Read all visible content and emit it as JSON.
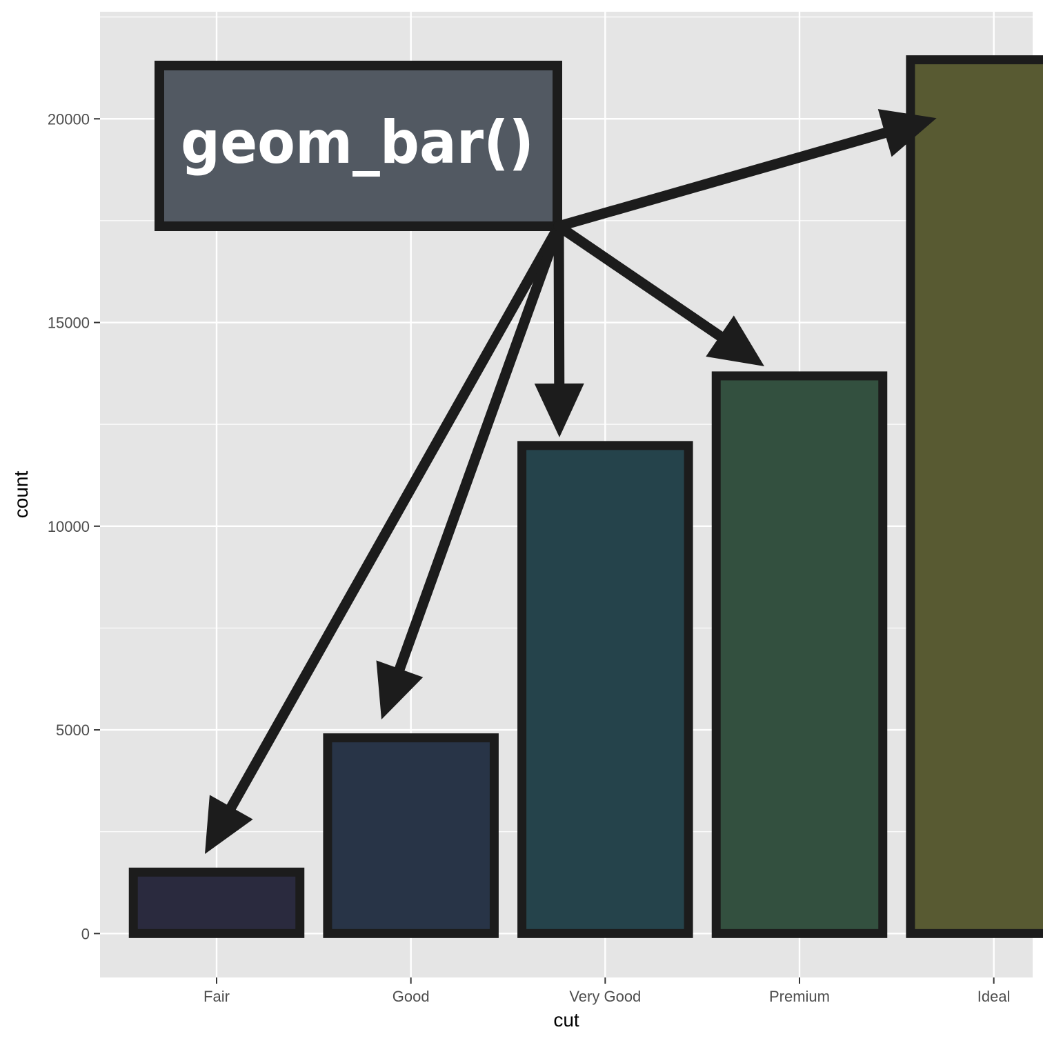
{
  "chart_data": {
    "type": "bar",
    "categories": [
      "Fair",
      "Good",
      "Very Good",
      "Premium",
      "Ideal"
    ],
    "values": [
      1610,
      4906,
      12082,
      13791,
      21551
    ],
    "bar_colors": [
      "#2a2a3e",
      "#283447",
      "#25434b",
      "#33503f",
      "#585a32"
    ],
    "bar_outline_color": "#1c1c1c",
    "xlabel": "cut",
    "ylabel": "count",
    "ylim": [
      -1078,
      22629
    ],
    "y_ticks": [
      0,
      5000,
      10000,
      15000,
      20000
    ],
    "grid": true,
    "annotation": {
      "text": "geom_bar()",
      "fill": "#525962",
      "arrows_to": [
        "Fair",
        "Good",
        "Very Good",
        "Premium",
        "Ideal"
      ]
    }
  },
  "colors": {
    "panel_background": "#e5e5e5",
    "grid_line": "#ffffff",
    "arrow": "#1c1c1c"
  }
}
